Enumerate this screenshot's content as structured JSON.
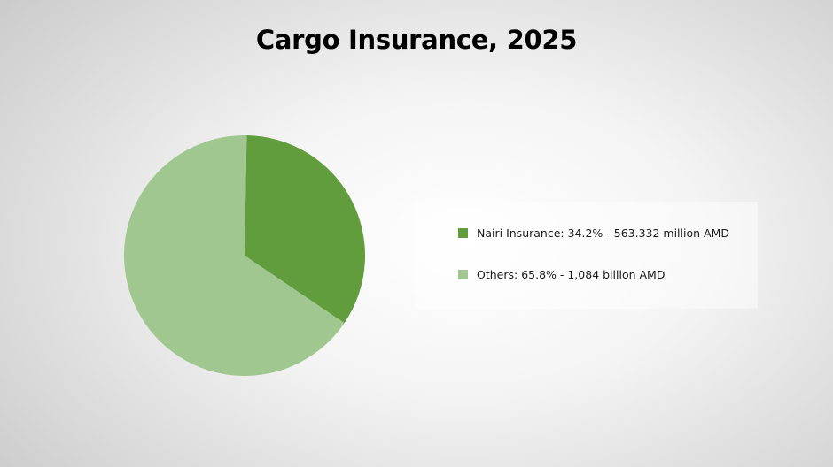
{
  "chart_data": {
    "type": "pie",
    "title": "Cargo Insurance, 2025",
    "series": [
      {
        "name": "Nairi Insurance",
        "value": 34.2,
        "label": "Nairi Insurance: 34.2% - 563.332 million AMD",
        "color": "#629d3d"
      },
      {
        "name": "Others",
        "value": 65.8,
        "label": "Others: 65.8% - 1,084 billion AMD",
        "color": "#a0c78f"
      }
    ],
    "start_angle_deg": 1,
    "direction": "clockwise",
    "legend_position": "right"
  }
}
